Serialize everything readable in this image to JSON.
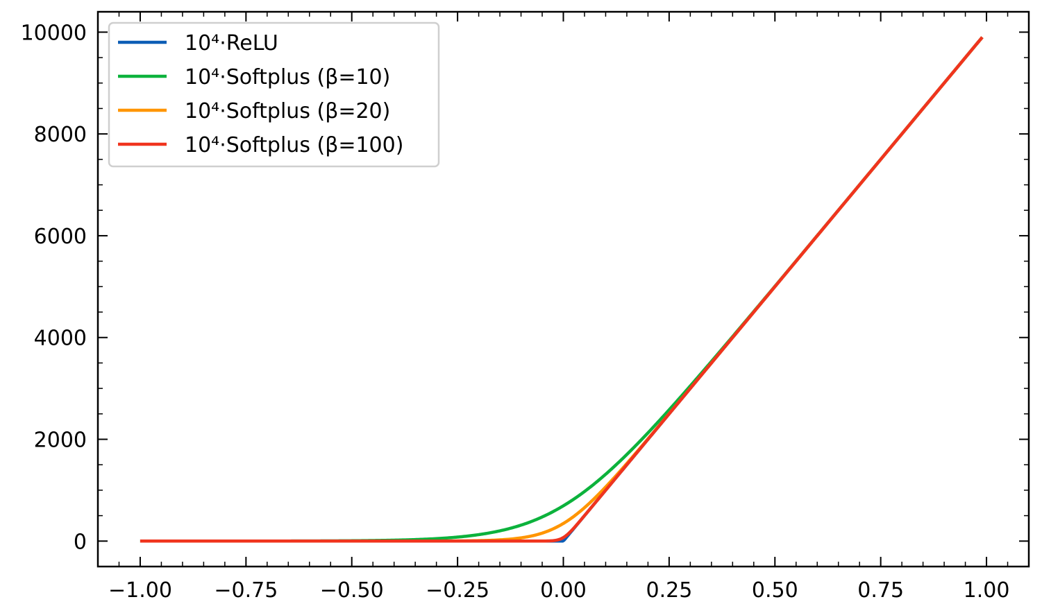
{
  "chart_data": {
    "type": "line",
    "title": "",
    "xlabel": "",
    "ylabel": "",
    "xlim": [
      -1.1,
      1.1
    ],
    "ylim": [
      -500,
      10400
    ],
    "xticks": [
      -1.0,
      -0.75,
      -0.5,
      -0.25,
      0.0,
      0.25,
      0.5,
      0.75,
      1.0
    ],
    "xtick_labels": [
      "−1.00",
      "−0.75",
      "−0.50",
      "−0.25",
      "0.00",
      "0.25",
      "0.50",
      "0.75",
      "1.00"
    ],
    "yticks": [
      0,
      2000,
      4000,
      6000,
      8000,
      10000
    ],
    "ytick_labels": [
      "0",
      "2000",
      "4000",
      "6000",
      "8000",
      "10000"
    ],
    "grid": false,
    "legend_position": "top-left",
    "x_start": -1.0,
    "x_end": 0.99,
    "series": [
      {
        "name": "10⁴·ReLU",
        "color": "#0c5db5",
        "beta": null
      },
      {
        "name": "10⁴·Softplus (β=10)",
        "color": "#0cb23c",
        "beta": 10
      },
      {
        "name": "10⁴·Softplus (β=20)",
        "color": "#ff9500",
        "beta": 20
      },
      {
        "name": "10⁴·Softplus (β=100)",
        "color": "#f0341e",
        "beta": 100
      }
    ],
    "scale": 10000
  }
}
